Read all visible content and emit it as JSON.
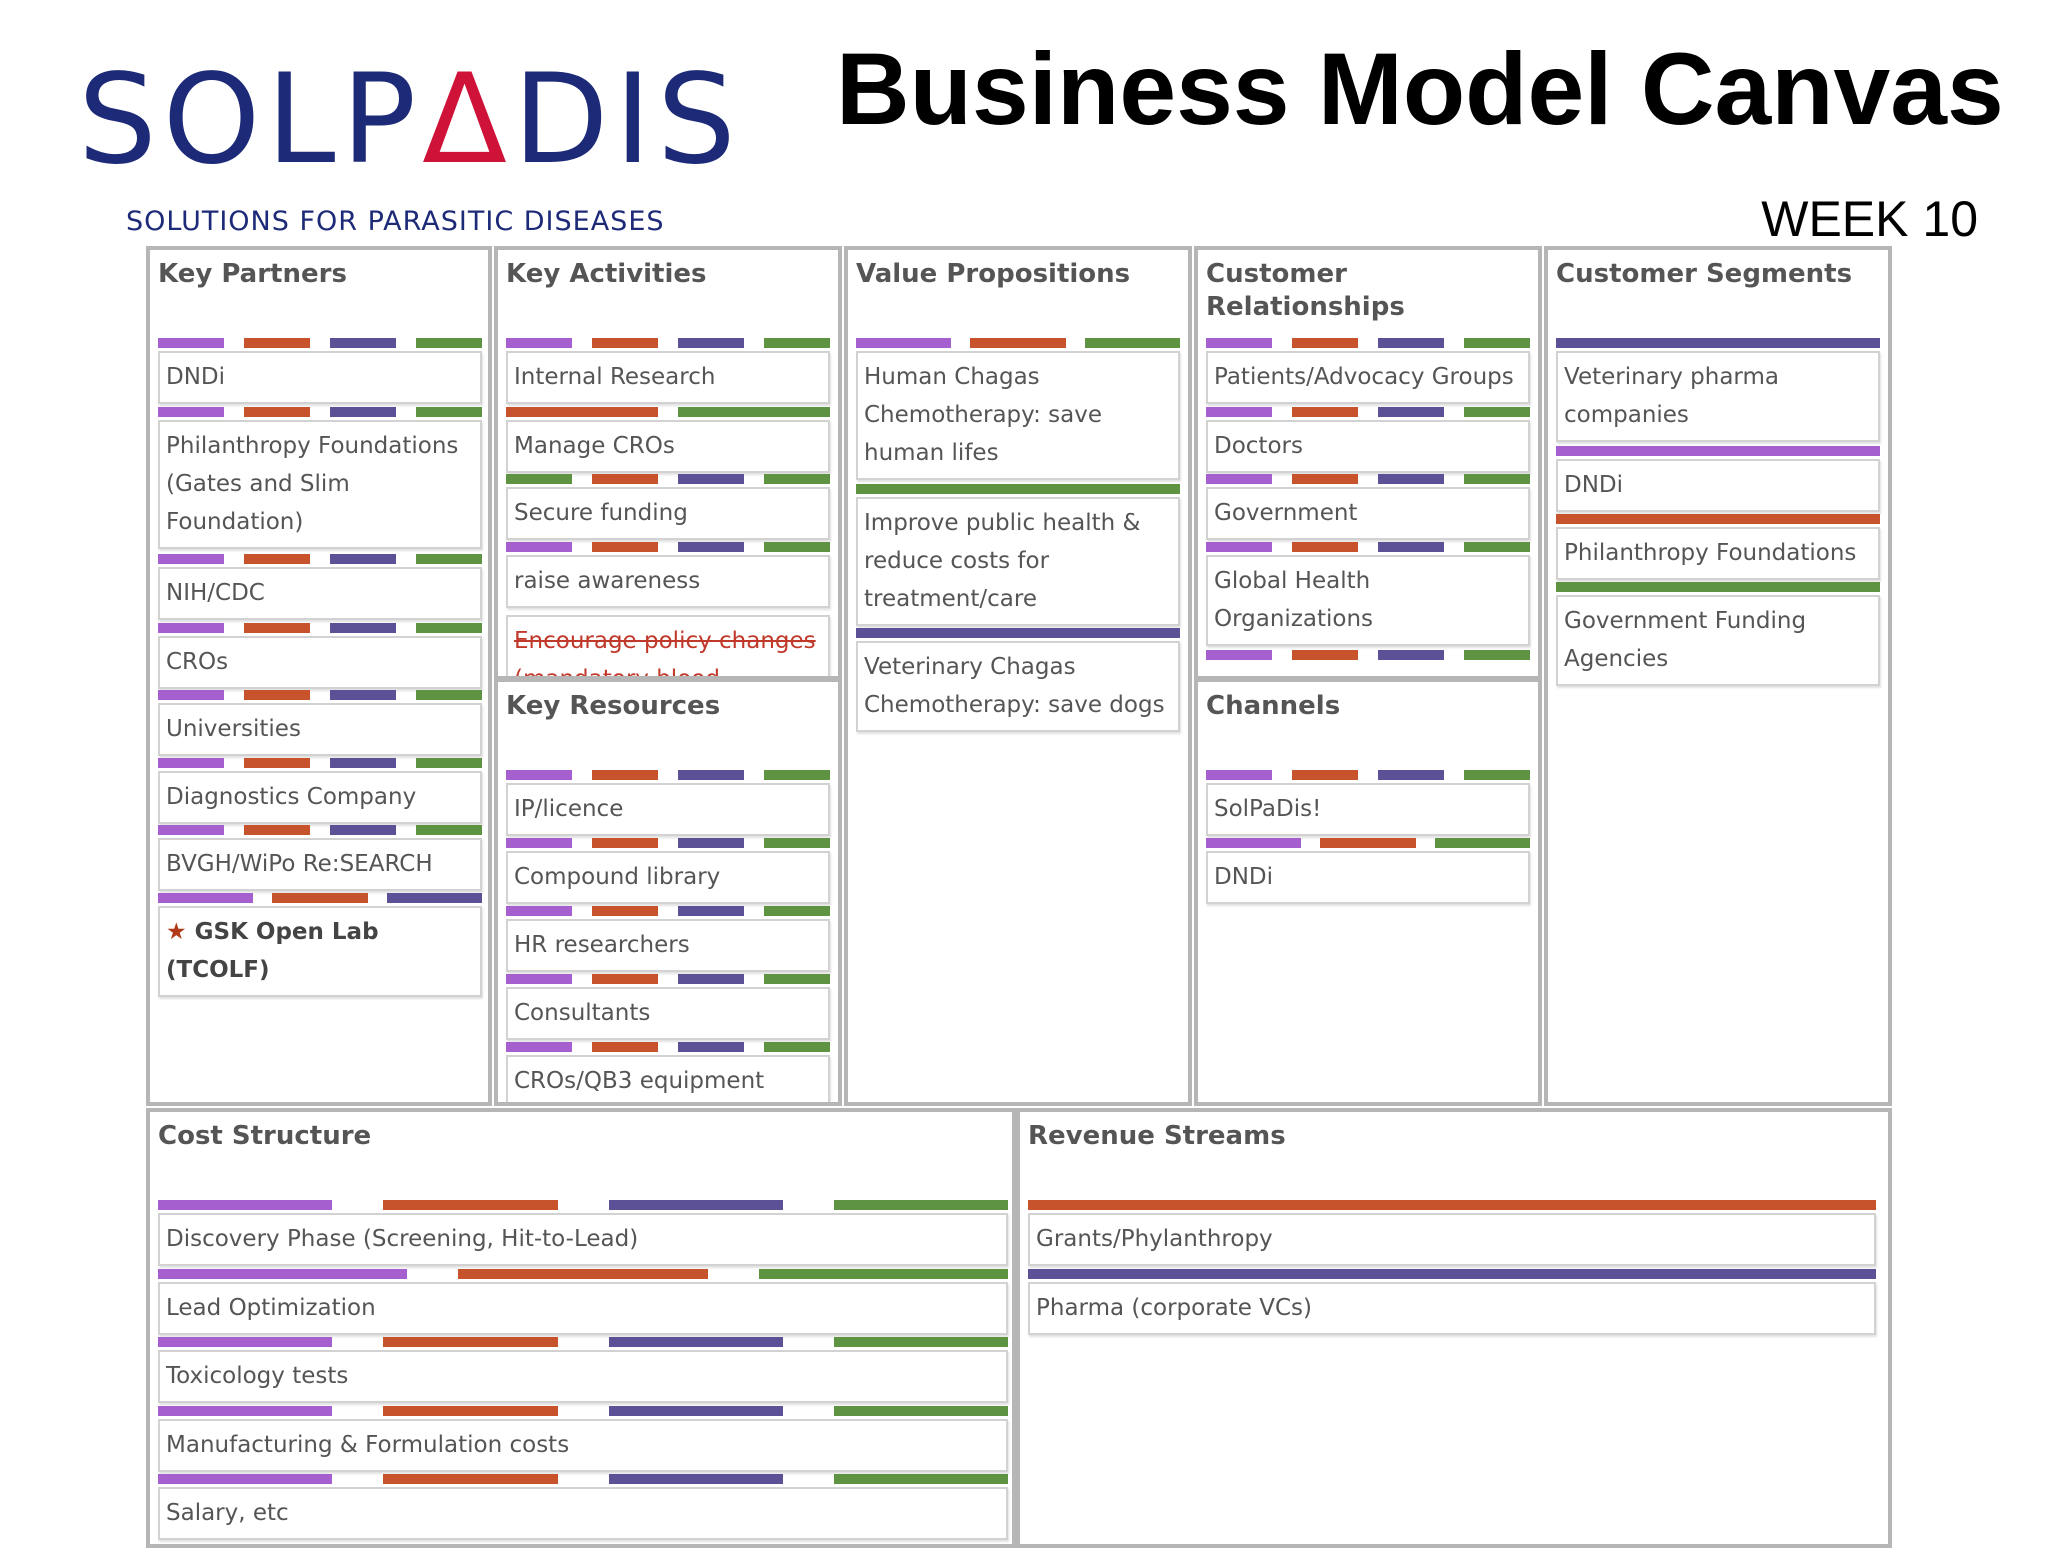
{
  "header": {
    "logo_text": "SOLPΔDIS",
    "tagline": "SOLUTIONS FOR PARASITIC DISEASES",
    "title": "Business Model Canvas",
    "week": "WEEK 10"
  },
  "colors": {
    "purple": "#a55fcf",
    "orange": "#c6532c",
    "slate": "#5c5196",
    "green": "#5e9441",
    "panel_border": "#b6b6b6",
    "logo_navy": "#1d2a78",
    "logo_red": "#cf1238"
  },
  "panels": {
    "key_partners": {
      "title": "Key Partners",
      "items": [
        {
          "text": "DNDi",
          "tags": [
            "purple",
            "orange",
            "slate",
            "green"
          ]
        },
        {
          "text": "Philanthropy Foundations (Gates and Slim Foundation)",
          "tags": [
            "purple",
            "orange",
            "slate",
            "green"
          ]
        },
        {
          "text": "NIH/CDC",
          "tags": [
            "purple",
            "orange",
            "slate",
            "green"
          ]
        },
        {
          "text": "CROs",
          "tags": [
            "purple",
            "orange",
            "slate",
            "green"
          ]
        },
        {
          "text": "Universities",
          "tags": [
            "purple",
            "orange",
            "slate",
            "green"
          ]
        },
        {
          "text": "Diagnostics Company",
          "tags": [
            "purple",
            "orange",
            "slate",
            "green"
          ]
        },
        {
          "text": "BVGH/WiPo Re:SEARCH",
          "tags": [
            "purple",
            "orange",
            "slate",
            "green"
          ]
        },
        {
          "text": "GSK Open Lab (TCOLF)",
          "tags": [
            "purple",
            "orange",
            "slate"
          ],
          "icon": "star-icon"
        }
      ]
    },
    "key_activities": {
      "title": "Key Activities",
      "items": [
        {
          "text": "Internal Research",
          "tags": [
            "purple",
            "orange",
            "slate",
            "green"
          ]
        },
        {
          "text": "Manage CROs",
          "tags": [
            "orange",
            "green"
          ]
        },
        {
          "text": "Secure funding",
          "tags": [
            "green",
            "orange",
            "slate",
            "green"
          ]
        },
        {
          "text": "raise awareness",
          "tags": [
            "purple",
            "orange",
            "slate",
            "green"
          ]
        },
        {
          "text": "Encourage policy changes (mandatory blood",
          "tags": []
        }
      ]
    },
    "key_resources": {
      "title": "Key Resources",
      "items": [
        {
          "text": "IP/licence",
          "tags": [
            "purple",
            "orange",
            "slate",
            "green"
          ]
        },
        {
          "text": "Compound library",
          "tags": [
            "purple",
            "orange",
            "slate",
            "green"
          ]
        },
        {
          "text": "HR researchers",
          "tags": [
            "purple",
            "orange",
            "slate",
            "green"
          ]
        },
        {
          "text": "Consultants",
          "tags": [
            "purple",
            "orange",
            "slate",
            "green"
          ]
        },
        {
          "text": "CROs/QB3 equipment",
          "tags": [
            "purple",
            "orange",
            "slate",
            "green"
          ]
        }
      ]
    },
    "value_propositions": {
      "title": "Value Propositions",
      "items": [
        {
          "text": "Human Chagas Chemotherapy: save human lifes",
          "tags": [
            "purple",
            "orange",
            "green"
          ]
        },
        {
          "text": "Improve public health & reduce costs for treatment/care",
          "tags": [
            "green"
          ]
        },
        {
          "text": "Veterinary Chagas Chemotherapy: save dogs",
          "tags": [
            "slate"
          ]
        }
      ]
    },
    "customer_relationships": {
      "title": "Customer Relationships",
      "items": [
        {
          "text": "Patients/Advocacy Groups",
          "tags": [
            "purple",
            "orange",
            "slate",
            "green"
          ]
        },
        {
          "text": "Doctors",
          "tags": [
            "purple",
            "orange",
            "slate",
            "green"
          ]
        },
        {
          "text": "Government",
          "tags": [
            "purple",
            "orange",
            "slate",
            "green"
          ]
        },
        {
          "text": "Global Health Organizations",
          "tags": [
            "purple",
            "orange",
            "slate",
            "green"
          ]
        }
      ]
    },
    "channels": {
      "title": "Channels",
      "items": [
        {
          "text": "SolPaDis!",
          "tags": [
            "purple",
            "orange",
            "slate",
            "green"
          ]
        },
        {
          "text": "DNDi",
          "tags": [
            "purple",
            "orange",
            "green"
          ]
        }
      ]
    },
    "customer_segments": {
      "title": "Customer Segments",
      "items": [
        {
          "text": "Veterinary pharma companies",
          "tags": [
            "slate"
          ]
        },
        {
          "text": "DNDi",
          "tags": [
            "purple"
          ]
        },
        {
          "text": "Philanthropy Foundations",
          "tags": [
            "orange"
          ]
        },
        {
          "text": "Government Funding Agencies",
          "tags": [
            "green"
          ]
        }
      ]
    },
    "cost_structure": {
      "title": "Cost Structure",
      "items": [
        {
          "text": "Discovery Phase (Screening, Hit-to-Lead)",
          "tags": [
            "purple",
            "orange",
            "slate",
            "green"
          ]
        },
        {
          "text": "Lead Optimization",
          "tags": [
            "purple",
            "orange",
            "green"
          ]
        },
        {
          "text": "Toxicology tests",
          "tags": [
            "purple",
            "orange",
            "slate",
            "green"
          ]
        },
        {
          "text": "Manufacturing & Formulation costs",
          "tags": [
            "purple",
            "orange",
            "slate",
            "green"
          ]
        },
        {
          "text": "Salary, etc",
          "tags": [
            "purple",
            "orange",
            "slate",
            "green"
          ]
        }
      ]
    },
    "revenue_streams": {
      "title": "Revenue Streams",
      "items": [
        {
          "text": "Grants/Phylanthropy",
          "tags": [
            "orange"
          ]
        },
        {
          "text": "Pharma (corporate VCs)",
          "tags": [
            "slate"
          ]
        }
      ]
    }
  }
}
